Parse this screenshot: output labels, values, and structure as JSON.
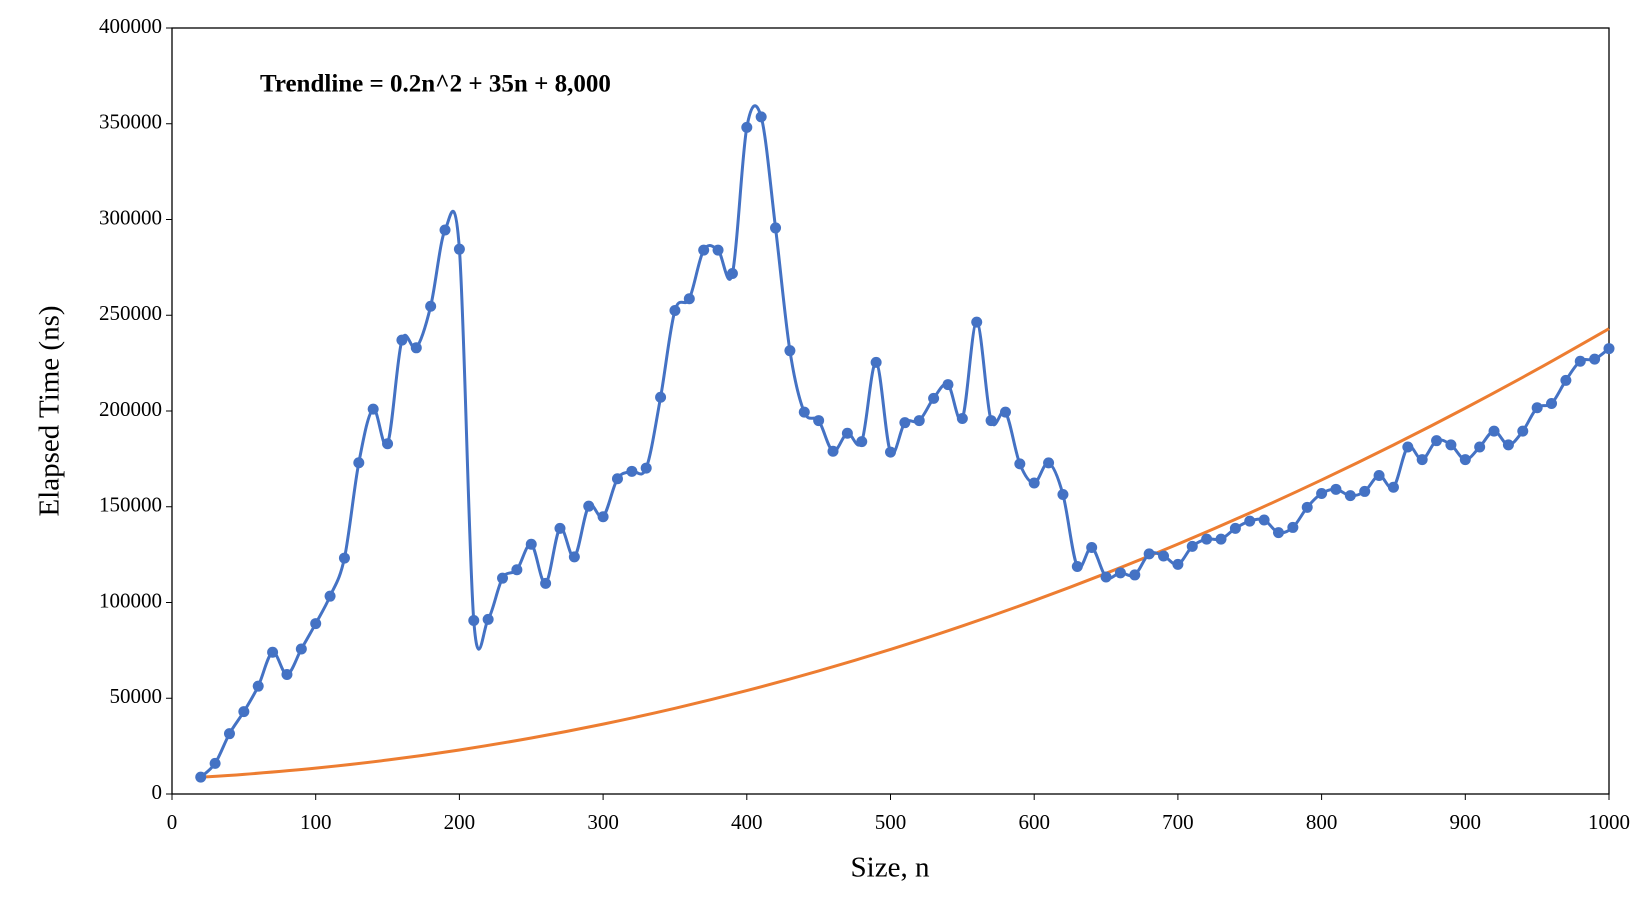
{
  "chart_data": {
    "type": "line",
    "annotation": "Trendline = 0.2n^2 + 35n + 8,000",
    "xlabel": "Size, n",
    "ylabel": "Elapsed Time (ns)",
    "xlim": [
      0,
      1000
    ],
    "ylim": [
      0,
      400000
    ],
    "xticks": [
      0,
      100,
      200,
      300,
      400,
      500,
      600,
      700,
      800,
      900,
      1000
    ],
    "yticks": [
      0,
      50000,
      100000,
      150000,
      200000,
      250000,
      300000,
      350000,
      400000
    ],
    "series": [
      {
        "color": "#4472c4",
        "markers": true,
        "x": [
          20,
          30,
          40,
          50,
          60,
          70,
          80,
          90,
          100,
          110,
          120,
          130,
          140,
          150,
          160,
          170,
          180,
          190,
          200,
          210,
          220,
          230,
          240,
          250,
          260,
          270,
          280,
          290,
          300,
          310,
          320,
          330,
          340,
          350,
          360,
          370,
          380,
          390,
          400,
          410,
          420,
          430,
          440,
          450,
          460,
          470,
          480,
          490,
          500,
          510,
          520,
          530,
          540,
          550,
          560,
          570,
          580,
          590,
          600,
          610,
          620,
          630,
          640,
          650,
          660,
          670,
          680,
          690,
          700,
          710,
          720,
          730,
          740,
          750,
          760,
          770,
          780,
          790,
          800,
          810,
          820,
          830,
          840,
          850,
          860,
          870,
          880,
          890,
          900,
          910,
          920,
          930,
          940,
          950,
          960,
          970,
          980,
          990,
          1000
        ],
        "values": [
          8800,
          16000,
          31500,
          43000,
          56300,
          74000,
          62400,
          75700,
          89000,
          103300,
          123200,
          173000,
          201000,
          182900,
          237000,
          233000,
          254700,
          294500,
          284500,
          90600,
          91200,
          112700,
          117100,
          130400,
          110000,
          138700,
          123800,
          150300,
          144800,
          164600,
          168500,
          170200,
          207200,
          252500,
          258600,
          284000,
          284000,
          271800,
          348100,
          353600,
          295600,
          231500,
          199400,
          195000,
          179000,
          188400,
          184000,
          225400,
          178500,
          193900,
          195000,
          206600,
          213800,
          196100,
          246400,
          195000,
          199400,
          172400,
          162400,
          172900,
          156400,
          118800,
          128700,
          113300,
          115500,
          114400,
          125400,
          124300,
          119900,
          129300,
          133100,
          133100,
          138700,
          142500,
          143100,
          136500,
          139200,
          149700,
          156900,
          159100,
          155800,
          158000,
          166300,
          160200,
          181200,
          174600,
          184500,
          182300,
          174600,
          181200,
          189500,
          182300,
          189500,
          201700,
          203900,
          216000,
          226000,
          227100,
          232600
        ]
      },
      {
        "color": "#ed7d31",
        "markers": false,
        "x": [
          20,
          50,
          100,
          150,
          200,
          250,
          300,
          350,
          400,
          450,
          500,
          550,
          600,
          650,
          700,
          750,
          800,
          850,
          900,
          950,
          1000
        ],
        "values": [
          8780,
          10250,
          13500,
          17750,
          23000,
          29250,
          36500,
          44750,
          54000,
          64250,
          75500,
          87750,
          101000,
          115250,
          130500,
          146750,
          164000,
          182250,
          201500,
          221750,
          243000
        ]
      }
    ]
  }
}
